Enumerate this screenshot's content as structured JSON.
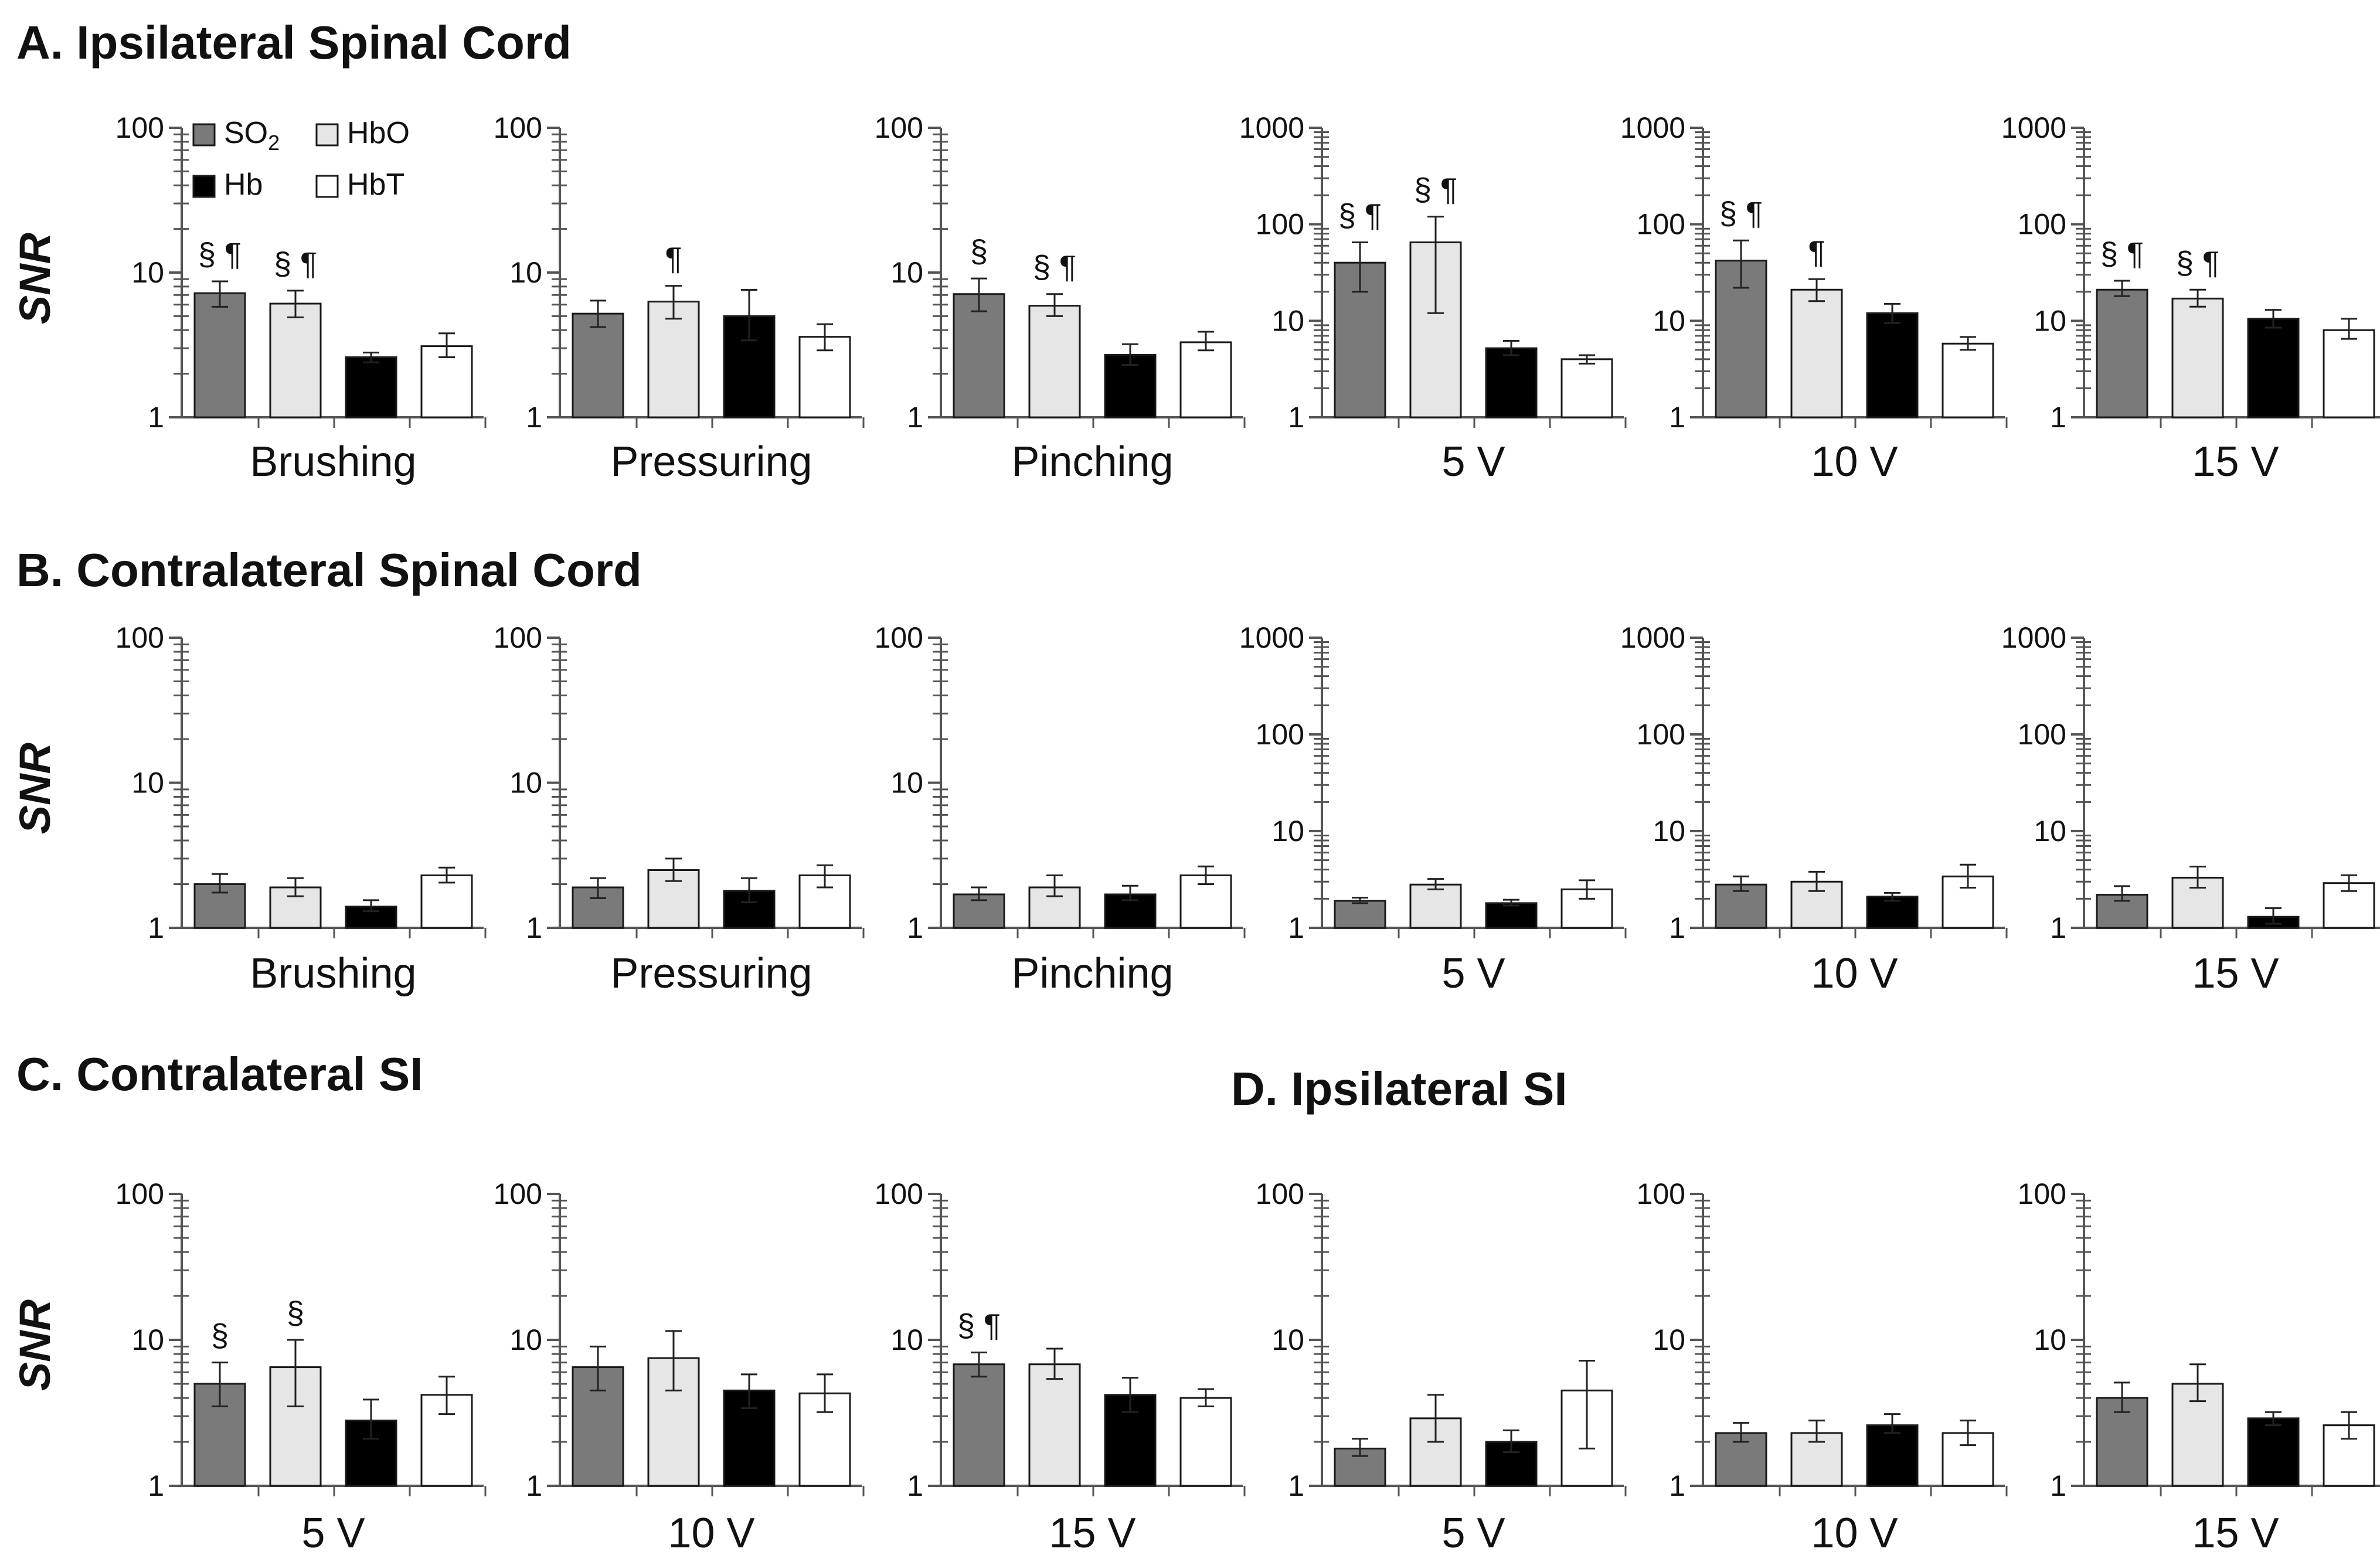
{
  "colors": {
    "SO2": "#7a7a7a",
    "HbO": "#e6e6e6",
    "Hb": "#000000",
    "HbT": "#ffffff",
    "stroke": "#1a1a1a"
  },
  "legend": [
    {
      "key": "SO2",
      "label": "SO",
      "sub": "2"
    },
    {
      "key": "HbO",
      "label": "HbO"
    },
    {
      "key": "Hb",
      "label": "Hb"
    },
    {
      "key": "HbT",
      "label": "HbT"
    }
  ],
  "ylabel": "SNR",
  "sections": {
    "A": "A. Ipsilateral Spinal Cord",
    "B": "B. Contralateral Spinal Cord",
    "C": "C. Contralateral SI",
    "D": "D. Ipsilateral SI"
  },
  "chart_data": [
    {
      "type": "bar",
      "section": "A",
      "category": "Brushing",
      "scale": "log",
      "ylim": [
        1,
        100
      ],
      "ticks": [
        "1",
        "10",
        "100"
      ],
      "series": [
        {
          "name": "SO2",
          "value": 7.2,
          "err": [
            5.8,
            8.7
          ],
          "sig": "§ ¶"
        },
        {
          "name": "HbO",
          "value": 6.1,
          "err": [
            4.9,
            7.5
          ],
          "sig": "§ ¶"
        },
        {
          "name": "Hb",
          "value": 2.6,
          "err": [
            2.4,
            2.8
          ],
          "sig": ""
        },
        {
          "name": "HbT",
          "value": 3.1,
          "err": [
            2.6,
            3.8
          ],
          "sig": ""
        }
      ]
    },
    {
      "type": "bar",
      "section": "A",
      "category": "Pressuring",
      "scale": "log",
      "ylim": [
        1,
        100
      ],
      "ticks": [
        "1",
        "10",
        "100"
      ],
      "series": [
        {
          "name": "SO2",
          "value": 5.2,
          "err": [
            4.2,
            6.4
          ],
          "sig": ""
        },
        {
          "name": "HbO",
          "value": 6.3,
          "err": [
            4.8,
            8.1
          ],
          "sig": "¶"
        },
        {
          "name": "Hb",
          "value": 5.0,
          "err": [
            3.4,
            7.6
          ],
          "sig": ""
        },
        {
          "name": "HbT",
          "value": 3.6,
          "err": [
            2.9,
            4.4
          ],
          "sig": ""
        }
      ]
    },
    {
      "type": "bar",
      "section": "A",
      "category": "Pinching",
      "scale": "log",
      "ylim": [
        1,
        100
      ],
      "ticks": [
        "1",
        "10",
        "100"
      ],
      "series": [
        {
          "name": "SO2",
          "value": 7.1,
          "err": [
            5.4,
            9.1
          ],
          "sig": "§"
        },
        {
          "name": "HbO",
          "value": 5.9,
          "err": [
            5.0,
            7.1
          ],
          "sig": "§ ¶"
        },
        {
          "name": "Hb",
          "value": 2.7,
          "err": [
            2.3,
            3.2
          ],
          "sig": ""
        },
        {
          "name": "HbT",
          "value": 3.3,
          "err": [
            2.9,
            3.9
          ],
          "sig": ""
        }
      ]
    },
    {
      "type": "bar",
      "section": "A",
      "category": "5 V",
      "scale": "log",
      "ylim": [
        1,
        1000
      ],
      "ticks": [
        "1",
        "10",
        "100",
        "1000"
      ],
      "series": [
        {
          "name": "SO2",
          "value": 40,
          "err": [
            20,
            65
          ],
          "sig": "§ ¶"
        },
        {
          "name": "HbO",
          "value": 65,
          "err": [
            12,
            120
          ],
          "sig": "§ ¶"
        },
        {
          "name": "Hb",
          "value": 5.2,
          "err": [
            4.4,
            6.2
          ],
          "sig": ""
        },
        {
          "name": "HbT",
          "value": 4.0,
          "err": [
            3.6,
            4.4
          ],
          "sig": ""
        }
      ]
    },
    {
      "type": "bar",
      "section": "A",
      "category": "10 V",
      "scale": "log",
      "ylim": [
        1,
        1000
      ],
      "ticks": [
        "1",
        "10",
        "100",
        "1000"
      ],
      "series": [
        {
          "name": "SO2",
          "value": 42,
          "err": [
            22,
            68
          ],
          "sig": "§ ¶"
        },
        {
          "name": "HbO",
          "value": 21,
          "err": [
            16,
            27
          ],
          "sig": "¶"
        },
        {
          "name": "Hb",
          "value": 12,
          "err": [
            9.5,
            15
          ],
          "sig": ""
        },
        {
          "name": "HbT",
          "value": 5.8,
          "err": [
            5.0,
            6.8
          ],
          "sig": ""
        }
      ]
    },
    {
      "type": "bar",
      "section": "A",
      "category": "15 V",
      "scale": "log",
      "ylim": [
        1,
        1000
      ],
      "ticks": [
        "1",
        "10",
        "100",
        "1000"
      ],
      "series": [
        {
          "name": "SO2",
          "value": 21,
          "err": [
            18,
            26
          ],
          "sig": "§ ¶"
        },
        {
          "name": "HbO",
          "value": 17,
          "err": [
            14,
            21
          ],
          "sig": "§ ¶"
        },
        {
          "name": "Hb",
          "value": 10.5,
          "err": [
            8.5,
            13
          ],
          "sig": ""
        },
        {
          "name": "HbT",
          "value": 8.0,
          "err": [
            6.5,
            10.5
          ],
          "sig": ""
        }
      ]
    },
    {
      "type": "bar",
      "section": "B",
      "category": "Brushing",
      "scale": "log",
      "ylim": [
        1,
        100
      ],
      "ticks": [
        "1",
        "10",
        "100"
      ],
      "series": [
        {
          "name": "SO2",
          "value": 2.0,
          "err": [
            1.75,
            2.35
          ],
          "sig": ""
        },
        {
          "name": "HbO",
          "value": 1.9,
          "err": [
            1.65,
            2.2
          ],
          "sig": ""
        },
        {
          "name": "Hb",
          "value": 1.4,
          "err": [
            1.3,
            1.55
          ],
          "sig": ""
        },
        {
          "name": "HbT",
          "value": 2.3,
          "err": [
            2.05,
            2.6
          ],
          "sig": ""
        }
      ]
    },
    {
      "type": "bar",
      "section": "B",
      "category": "Pressuring",
      "scale": "log",
      "ylim": [
        1,
        100
      ],
      "ticks": [
        "1",
        "10",
        "100"
      ],
      "series": [
        {
          "name": "SO2",
          "value": 1.9,
          "err": [
            1.6,
            2.2
          ],
          "sig": ""
        },
        {
          "name": "HbO",
          "value": 2.5,
          "err": [
            2.1,
            3.0
          ],
          "sig": ""
        },
        {
          "name": "Hb",
          "value": 1.8,
          "err": [
            1.5,
            2.2
          ],
          "sig": ""
        },
        {
          "name": "HbT",
          "value": 2.3,
          "err": [
            1.9,
            2.7
          ],
          "sig": ""
        }
      ]
    },
    {
      "type": "bar",
      "section": "B",
      "category": "Pinching",
      "scale": "log",
      "ylim": [
        1,
        100
      ],
      "ticks": [
        "1",
        "10",
        "100"
      ],
      "series": [
        {
          "name": "SO2",
          "value": 1.7,
          "err": [
            1.55,
            1.9
          ],
          "sig": ""
        },
        {
          "name": "HbO",
          "value": 1.9,
          "err": [
            1.65,
            2.3
          ],
          "sig": ""
        },
        {
          "name": "Hb",
          "value": 1.7,
          "err": [
            1.55,
            1.95
          ],
          "sig": ""
        },
        {
          "name": "HbT",
          "value": 2.3,
          "err": [
            2.0,
            2.65
          ],
          "sig": ""
        }
      ]
    },
    {
      "type": "bar",
      "section": "B",
      "category": "5 V",
      "scale": "log",
      "ylim": [
        1,
        1000
      ],
      "ticks": [
        "1",
        "10",
        "100",
        "1000"
      ],
      "series": [
        {
          "name": "SO2",
          "value": 1.9,
          "err": [
            1.8,
            2.05
          ],
          "sig": ""
        },
        {
          "name": "HbO",
          "value": 2.8,
          "err": [
            2.5,
            3.2
          ],
          "sig": ""
        },
        {
          "name": "Hb",
          "value": 1.8,
          "err": [
            1.7,
            1.95
          ],
          "sig": ""
        },
        {
          "name": "HbT",
          "value": 2.5,
          "err": [
            2.0,
            3.1
          ],
          "sig": ""
        }
      ]
    },
    {
      "type": "bar",
      "section": "B",
      "category": "10 V",
      "scale": "log",
      "ylim": [
        1,
        1000
      ],
      "ticks": [
        "1",
        "10",
        "100",
        "1000"
      ],
      "series": [
        {
          "name": "SO2",
          "value": 2.8,
          "err": [
            2.4,
            3.4
          ],
          "sig": ""
        },
        {
          "name": "HbO",
          "value": 3.0,
          "err": [
            2.4,
            3.8
          ],
          "sig": ""
        },
        {
          "name": "Hb",
          "value": 2.1,
          "err": [
            1.9,
            2.3
          ],
          "sig": ""
        },
        {
          "name": "HbT",
          "value": 3.4,
          "err": [
            2.6,
            4.5
          ],
          "sig": ""
        }
      ]
    },
    {
      "type": "bar",
      "section": "B",
      "category": "15 V",
      "scale": "log",
      "ylim": [
        1,
        1000
      ],
      "ticks": [
        "1",
        "10",
        "100",
        "1000"
      ],
      "series": [
        {
          "name": "SO2",
          "value": 2.2,
          "err": [
            1.9,
            2.7
          ],
          "sig": ""
        },
        {
          "name": "HbO",
          "value": 3.3,
          "err": [
            2.6,
            4.3
          ],
          "sig": ""
        },
        {
          "name": "Hb",
          "value": 1.3,
          "err": [
            1.1,
            1.6
          ],
          "sig": ""
        },
        {
          "name": "HbT",
          "value": 2.9,
          "err": [
            2.4,
            3.5
          ],
          "sig": ""
        }
      ]
    },
    {
      "type": "bar",
      "section": "C",
      "category": "5 V",
      "scale": "log",
      "ylim": [
        1,
        100
      ],
      "ticks": [
        "1",
        "10",
        "100"
      ],
      "series": [
        {
          "name": "SO2",
          "value": 5.0,
          "err": [
            3.5,
            7.0
          ],
          "sig": "§"
        },
        {
          "name": "HbO",
          "value": 6.5,
          "err": [
            3.5,
            10.0
          ],
          "sig": "§"
        },
        {
          "name": "Hb",
          "value": 2.8,
          "err": [
            2.1,
            3.9
          ],
          "sig": ""
        },
        {
          "name": "HbT",
          "value": 4.2,
          "err": [
            3.1,
            5.6
          ],
          "sig": ""
        }
      ]
    },
    {
      "type": "bar",
      "section": "C",
      "category": "10 V",
      "scale": "log",
      "ylim": [
        1,
        100
      ],
      "ticks": [
        "1",
        "10",
        "100"
      ],
      "series": [
        {
          "name": "SO2",
          "value": 6.5,
          "err": [
            4.5,
            9.0
          ],
          "sig": ""
        },
        {
          "name": "HbO",
          "value": 7.5,
          "err": [
            4.5,
            11.5
          ],
          "sig": ""
        },
        {
          "name": "Hb",
          "value": 4.5,
          "err": [
            3.4,
            5.8
          ],
          "sig": ""
        },
        {
          "name": "HbT",
          "value": 4.3,
          "err": [
            3.2,
            5.8
          ],
          "sig": ""
        }
      ]
    },
    {
      "type": "bar",
      "section": "C",
      "category": "15 V",
      "scale": "log",
      "ylim": [
        1,
        100
      ],
      "ticks": [
        "1",
        "10",
        "100"
      ],
      "series": [
        {
          "name": "SO2",
          "value": 6.8,
          "err": [
            5.6,
            8.2
          ],
          "sig": "§ ¶"
        },
        {
          "name": "HbO",
          "value": 6.8,
          "err": [
            5.4,
            8.7
          ],
          "sig": ""
        },
        {
          "name": "Hb",
          "value": 4.2,
          "err": [
            3.2,
            5.5
          ],
          "sig": ""
        },
        {
          "name": "HbT",
          "value": 4.0,
          "err": [
            3.5,
            4.6
          ],
          "sig": ""
        }
      ]
    },
    {
      "type": "bar",
      "section": "D",
      "category": "5 V",
      "scale": "log",
      "ylim": [
        1,
        100
      ],
      "ticks": [
        "1",
        "10",
        "100"
      ],
      "series": [
        {
          "name": "SO2",
          "value": 1.8,
          "err": [
            1.6,
            2.1
          ],
          "sig": ""
        },
        {
          "name": "HbO",
          "value": 2.9,
          "err": [
            2.0,
            4.2
          ],
          "sig": ""
        },
        {
          "name": "Hb",
          "value": 2.0,
          "err": [
            1.7,
            2.4
          ],
          "sig": ""
        },
        {
          "name": "HbT",
          "value": 4.5,
          "err": [
            1.8,
            7.2
          ],
          "sig": ""
        }
      ]
    },
    {
      "type": "bar",
      "section": "D",
      "category": "10 V",
      "scale": "log",
      "ylim": [
        1,
        100
      ],
      "ticks": [
        "1",
        "10",
        "100"
      ],
      "series": [
        {
          "name": "SO2",
          "value": 2.3,
          "err": [
            2.0,
            2.7
          ],
          "sig": ""
        },
        {
          "name": "HbO",
          "value": 2.3,
          "err": [
            2.0,
            2.8
          ],
          "sig": ""
        },
        {
          "name": "Hb",
          "value": 2.6,
          "err": [
            2.3,
            3.1
          ],
          "sig": ""
        },
        {
          "name": "HbT",
          "value": 2.3,
          "err": [
            1.9,
            2.8
          ],
          "sig": ""
        }
      ]
    },
    {
      "type": "bar",
      "section": "D",
      "category": "15 V",
      "scale": "log",
      "ylim": [
        1,
        100
      ],
      "ticks": [
        "1",
        "10",
        "100"
      ],
      "series": [
        {
          "name": "SO2",
          "value": 4.0,
          "err": [
            3.2,
            5.1
          ],
          "sig": ""
        },
        {
          "name": "HbO",
          "value": 5.0,
          "err": [
            3.8,
            6.8
          ],
          "sig": ""
        },
        {
          "name": "Hb",
          "value": 2.9,
          "err": [
            2.6,
            3.2
          ],
          "sig": ""
        },
        {
          "name": "HbT",
          "value": 2.6,
          "err": [
            2.1,
            3.2
          ],
          "sig": ""
        }
      ]
    }
  ]
}
